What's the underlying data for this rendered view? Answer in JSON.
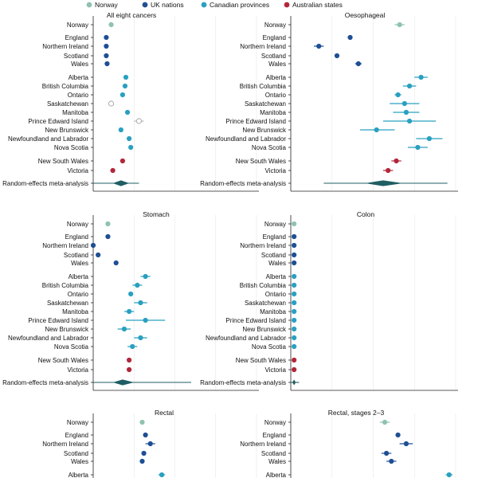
{
  "legend": [
    {
      "name": "Norway",
      "color": "#8fc3ad"
    },
    {
      "name": "UK nations",
      "color": "#1e4f94"
    },
    {
      "name": "Canadian provinces",
      "color": "#2aa0c0"
    },
    {
      "name": "Australian states",
      "color": "#b2263a"
    }
  ],
  "colors": {
    "Norway": "#8fc3ad",
    "UK": "#1e4f94",
    "Canada": "#2aa0c0",
    "Australia": "#b2263a",
    "meta": "#1f5e63"
  },
  "chart_data": [
    {
      "type": "scatter",
      "title": "All eight cancers",
      "xlim": [
        0,
        1
      ],
      "rows": [
        {
          "label": "Norway",
          "group": "Norway",
          "est": 0.11,
          "lo": 0.11,
          "hi": 0.11
        },
        {
          "label": "England",
          "group": "UK",
          "est": 0.08,
          "lo": 0.08,
          "hi": 0.08
        },
        {
          "label": "Northern Ireland",
          "group": "UK",
          "est": 0.08,
          "lo": 0.08,
          "hi": 0.08
        },
        {
          "label": "Scotland",
          "group": "UK",
          "est": 0.08,
          "lo": 0.08,
          "hi": 0.08
        },
        {
          "label": "Wales",
          "group": "UK",
          "est": 0.085,
          "lo": 0.085,
          "hi": 0.085
        },
        {
          "label": "Alberta",
          "group": "Canada",
          "est": 0.2,
          "lo": 0.2,
          "hi": 0.2
        },
        {
          "label": "British Columbia",
          "group": "Canada",
          "est": 0.195,
          "lo": 0.195,
          "hi": 0.195
        },
        {
          "label": "Ontario",
          "group": "Canada",
          "est": 0.18,
          "lo": 0.18,
          "hi": 0.18
        },
        {
          "label": "Saskatchewan",
          "group": "Canada",
          "est": 0.11,
          "lo": 0.11,
          "hi": 0.11,
          "hollow": true
        },
        {
          "label": "Manitoba",
          "group": "Canada",
          "est": 0.21,
          "lo": 0.21,
          "hi": 0.21
        },
        {
          "label": "Prince Edward Island",
          "group": "Canada",
          "est": 0.28,
          "lo": 0.25,
          "hi": 0.31,
          "hollow": true
        },
        {
          "label": "New Brunswick",
          "group": "Canada",
          "est": 0.17,
          "lo": 0.17,
          "hi": 0.17
        },
        {
          "label": "Newfoundland and Labrador",
          "group": "Canada",
          "est": 0.22,
          "lo": 0.22,
          "hi": 0.22
        },
        {
          "label": "Nova Scotia",
          "group": "Canada",
          "est": 0.23,
          "lo": 0.23,
          "hi": 0.23
        },
        {
          "label": "New South Wales",
          "group": "Australia",
          "est": 0.18,
          "lo": 0.18,
          "hi": 0.18
        },
        {
          "label": "Victoria",
          "group": "Australia",
          "est": 0.12,
          "lo": 0.12,
          "hi": 0.12
        }
      ],
      "meta": {
        "label": "Random-effects meta-analysis",
        "est": 0.17,
        "lo": 0.0,
        "hi": 0.28,
        "dlo": 0.12,
        "dhi": 0.22
      }
    },
    {
      "type": "scatter",
      "title": "Oesophageal",
      "xlim": [
        0,
        1
      ],
      "rows": [
        {
          "label": "Norway",
          "group": "Norway",
          "est": 0.66,
          "lo": 0.63,
          "hi": 0.69
        },
        {
          "label": "England",
          "group": "UK",
          "est": 0.36,
          "lo": 0.36,
          "hi": 0.36
        },
        {
          "label": "Northern Ireland",
          "group": "UK",
          "est": 0.17,
          "lo": 0.14,
          "hi": 0.2
        },
        {
          "label": "Scotland",
          "group": "UK",
          "est": 0.28,
          "lo": 0.28,
          "hi": 0.28
        },
        {
          "label": "Wales",
          "group": "UK",
          "est": 0.41,
          "lo": 0.39,
          "hi": 0.43
        },
        {
          "label": "Alberta",
          "group": "Canada",
          "est": 0.79,
          "lo": 0.75,
          "hi": 0.83
        },
        {
          "label": "British Columbia",
          "group": "Canada",
          "est": 0.72,
          "lo": 0.68,
          "hi": 0.76
        },
        {
          "label": "Ontario",
          "group": "Canada",
          "est": 0.65,
          "lo": 0.63,
          "hi": 0.67
        },
        {
          "label": "Saskatchewan",
          "group": "Canada",
          "est": 0.69,
          "lo": 0.6,
          "hi": 0.78
        },
        {
          "label": "Manitoba",
          "group": "Canada",
          "est": 0.7,
          "lo": 0.62,
          "hi": 0.78
        },
        {
          "label": "Prince Edward Island",
          "group": "Canada",
          "est": 0.72,
          "lo": 0.56,
          "hi": 0.88
        },
        {
          "label": "New Brunswick",
          "group": "Canada",
          "est": 0.52,
          "lo": 0.42,
          "hi": 0.63
        },
        {
          "label": "Newfoundland and Labrador",
          "group": "Canada",
          "est": 0.84,
          "lo": 0.76,
          "hi": 0.92
        },
        {
          "label": "Nova Scotia",
          "group": "Canada",
          "est": 0.77,
          "lo": 0.71,
          "hi": 0.83
        },
        {
          "label": "New South Wales",
          "group": "Australia",
          "est": 0.64,
          "lo": 0.61,
          "hi": 0.67
        },
        {
          "label": "Victoria",
          "group": "Australia",
          "est": 0.59,
          "lo": 0.56,
          "hi": 0.62
        }
      ],
      "meta": {
        "label": "Random-effects meta-analysis",
        "est": 0.56,
        "lo": 0.2,
        "hi": 0.95,
        "dlo": 0.45,
        "dhi": 0.68
      }
    },
    {
      "type": "scatter",
      "title": "Stomach",
      "xlim": [
        0,
        1
      ],
      "rows": [
        {
          "label": "Norway",
          "group": "Norway",
          "est": 0.09,
          "lo": 0.09,
          "hi": 0.09
        },
        {
          "label": "England",
          "group": "UK",
          "est": 0.09,
          "lo": 0.09,
          "hi": 0.09
        },
        {
          "label": "Northern Ireland",
          "group": "UK",
          "est": 0.0,
          "lo": 0.0,
          "hi": 0.0
        },
        {
          "label": "Scotland",
          "group": "UK",
          "est": 0.03,
          "lo": 0.03,
          "hi": 0.03
        },
        {
          "label": "Wales",
          "group": "UK",
          "est": 0.14,
          "lo": 0.14,
          "hi": 0.14
        },
        {
          "label": "Alberta",
          "group": "Canada",
          "est": 0.32,
          "lo": 0.29,
          "hi": 0.35
        },
        {
          "label": "British Columbia",
          "group": "Canada",
          "est": 0.27,
          "lo": 0.24,
          "hi": 0.3
        },
        {
          "label": "Ontario",
          "group": "Canada",
          "est": 0.23,
          "lo": 0.23,
          "hi": 0.23
        },
        {
          "label": "Saskatchewan",
          "group": "Canada",
          "est": 0.29,
          "lo": 0.25,
          "hi": 0.33
        },
        {
          "label": "Manitoba",
          "group": "Canada",
          "est": 0.22,
          "lo": 0.19,
          "hi": 0.25
        },
        {
          "label": "Prince Edward Island",
          "group": "Canada",
          "est": 0.32,
          "lo": 0.2,
          "hi": 0.44
        },
        {
          "label": "New Brunswick",
          "group": "Canada",
          "est": 0.19,
          "lo": 0.15,
          "hi": 0.23
        },
        {
          "label": "Newfoundland and Labrador",
          "group": "Canada",
          "est": 0.29,
          "lo": 0.25,
          "hi": 0.33
        },
        {
          "label": "Nova Scotia",
          "group": "Canada",
          "est": 0.24,
          "lo": 0.21,
          "hi": 0.27
        },
        {
          "label": "New South Wales",
          "group": "Australia",
          "est": 0.22,
          "lo": 0.22,
          "hi": 0.22
        },
        {
          "label": "Victoria",
          "group": "Australia",
          "est": 0.22,
          "lo": 0.22,
          "hi": 0.22
        }
      ],
      "meta": {
        "label": "Random-effects meta-analysis",
        "est": 0.18,
        "lo": 0.0,
        "hi": 0.6,
        "dlo": 0.12,
        "dhi": 0.25
      }
    },
    {
      "type": "scatter",
      "title": "Colon",
      "xlim": [
        0,
        1
      ],
      "rows": [
        {
          "label": "Norway",
          "group": "Norway",
          "est": 0.02,
          "lo": 0.02,
          "hi": 0.02
        },
        {
          "label": "England",
          "group": "UK",
          "est": 0.02,
          "lo": 0.02,
          "hi": 0.02
        },
        {
          "label": "Northern Ireland",
          "group": "UK",
          "est": 0.02,
          "lo": 0.02,
          "hi": 0.02
        },
        {
          "label": "Scotland",
          "group": "UK",
          "est": 0.02,
          "lo": 0.02,
          "hi": 0.02
        },
        {
          "label": "Wales",
          "group": "UK",
          "est": 0.02,
          "lo": 0.02,
          "hi": 0.02
        },
        {
          "label": "Alberta",
          "group": "Canada",
          "est": 0.02,
          "lo": 0.02,
          "hi": 0.02
        },
        {
          "label": "British Columbia",
          "group": "Canada",
          "est": 0.02,
          "lo": 0.02,
          "hi": 0.02
        },
        {
          "label": "Ontario",
          "group": "Canada",
          "est": 0.02,
          "lo": 0.02,
          "hi": 0.02
        },
        {
          "label": "Saskatchewan",
          "group": "Canada",
          "est": 0.02,
          "lo": 0.02,
          "hi": 0.02
        },
        {
          "label": "Manitoba",
          "group": "Canada",
          "est": 0.02,
          "lo": 0.02,
          "hi": 0.02
        },
        {
          "label": "Prince Edward Island",
          "group": "Canada",
          "est": 0.02,
          "lo": 0.02,
          "hi": 0.02
        },
        {
          "label": "New Brunswick",
          "group": "Canada",
          "est": 0.02,
          "lo": 0.02,
          "hi": 0.02
        },
        {
          "label": "Newfoundland and Labrador",
          "group": "Canada",
          "est": 0.02,
          "lo": 0.02,
          "hi": 0.02
        },
        {
          "label": "Nova Scotia",
          "group": "Canada",
          "est": 0.02,
          "lo": 0.02,
          "hi": 0.02
        },
        {
          "label": "New South Wales",
          "group": "Australia",
          "est": 0.02,
          "lo": 0.02,
          "hi": 0.02
        },
        {
          "label": "Victoria",
          "group": "Australia",
          "est": 0.02,
          "lo": 0.02,
          "hi": 0.02
        }
      ],
      "meta": {
        "label": "Random-effects meta-analysis",
        "est": 0.02,
        "lo": 0.0,
        "hi": 0.05,
        "dlo": 0.01,
        "dhi": 0.03
      }
    },
    {
      "type": "scatter",
      "title": "Rectal",
      "xlim": [
        0,
        1
      ],
      "rows": [
        {
          "label": "Norway",
          "group": "Norway",
          "est": 0.3,
          "lo": 0.3,
          "hi": 0.3
        },
        {
          "label": "England",
          "group": "UK",
          "est": 0.32,
          "lo": 0.32,
          "hi": 0.32
        },
        {
          "label": "Northern Ireland",
          "group": "UK",
          "est": 0.35,
          "lo": 0.32,
          "hi": 0.38
        },
        {
          "label": "Scotland",
          "group": "UK",
          "est": 0.31,
          "lo": 0.31,
          "hi": 0.31
        },
        {
          "label": "Wales",
          "group": "UK",
          "est": 0.3,
          "lo": 0.3,
          "hi": 0.3
        },
        {
          "label": "Alberta",
          "group": "Canada",
          "est": 0.42,
          "lo": 0.4,
          "hi": 0.44
        }
      ]
    },
    {
      "type": "scatter",
      "title": "Rectal, stages 2–3",
      "xlim": [
        0,
        1
      ],
      "rows": [
        {
          "label": "Norway",
          "group": "Norway",
          "est": 0.57,
          "lo": 0.54,
          "hi": 0.6
        },
        {
          "label": "England",
          "group": "UK",
          "est": 0.65,
          "lo": 0.65,
          "hi": 0.65
        },
        {
          "label": "Northern Ireland",
          "group": "UK",
          "est": 0.7,
          "lo": 0.66,
          "hi": 0.74
        },
        {
          "label": "Scotland",
          "group": "UK",
          "est": 0.58,
          "lo": 0.55,
          "hi": 0.61
        },
        {
          "label": "Wales",
          "group": "UK",
          "est": 0.61,
          "lo": 0.58,
          "hi": 0.64
        },
        {
          "label": "Alberta",
          "group": "Canada",
          "est": 0.96,
          "lo": 0.94,
          "hi": 0.98
        }
      ]
    }
  ]
}
